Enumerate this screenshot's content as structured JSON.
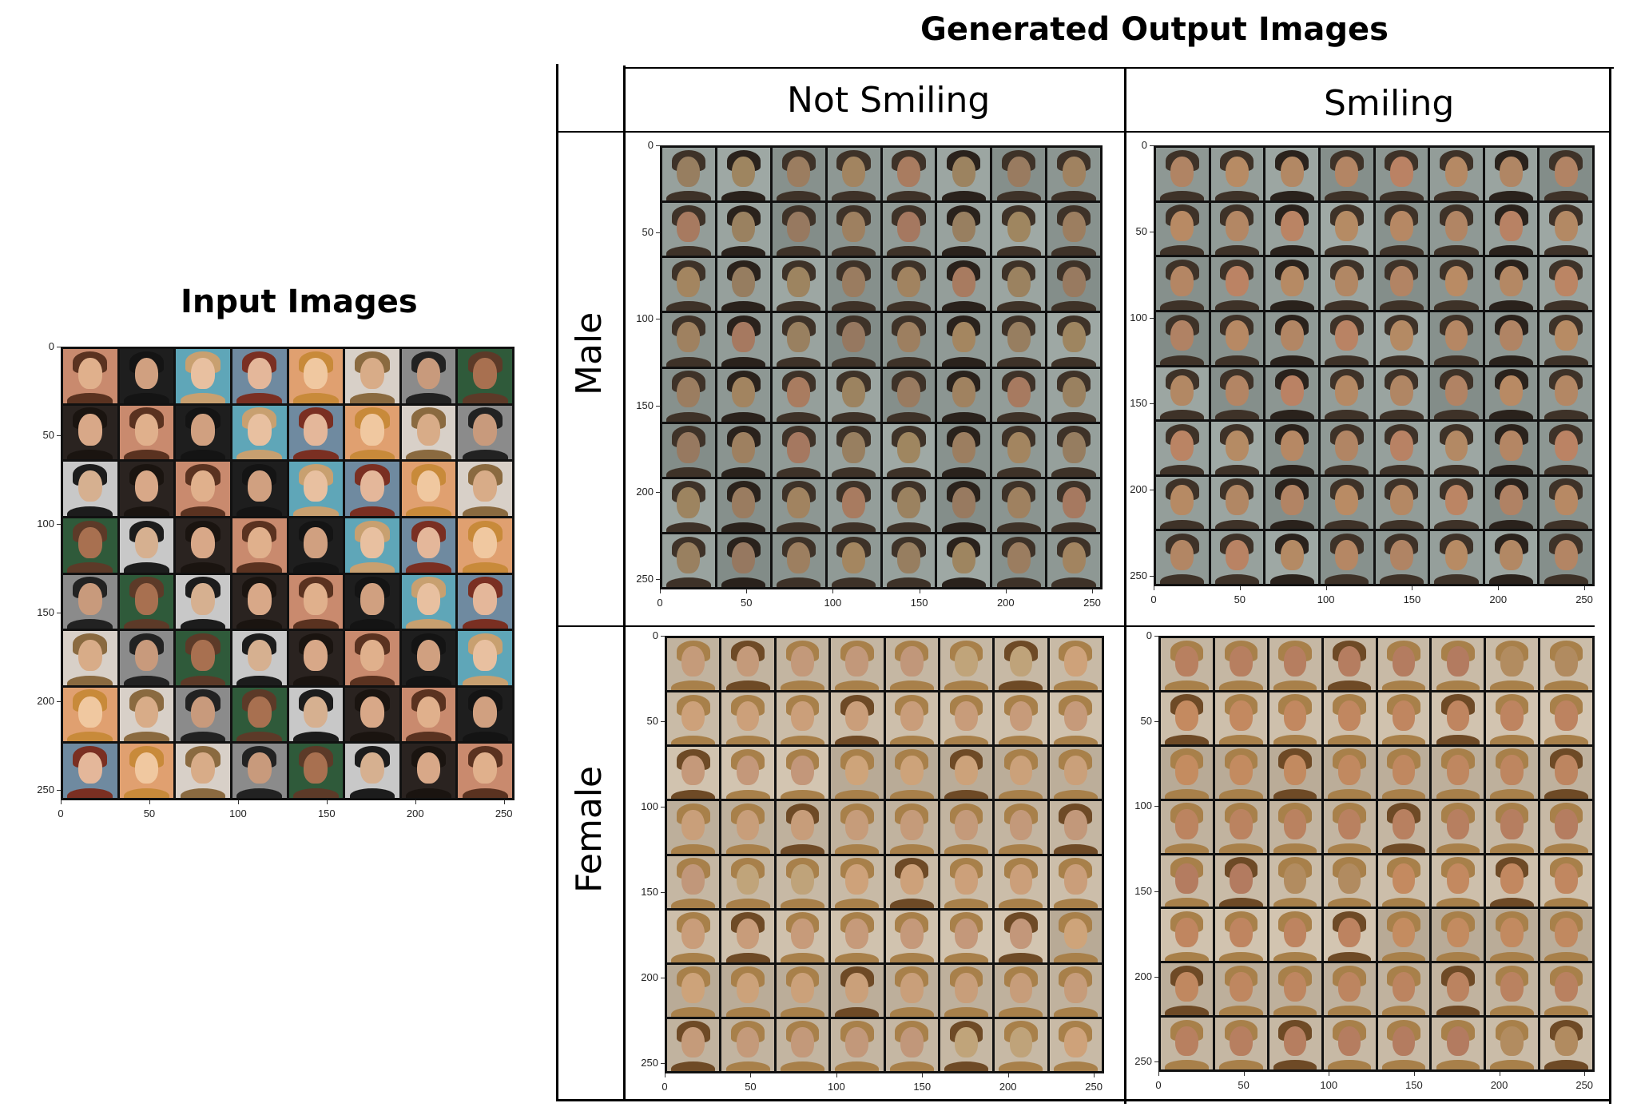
{
  "input_title": "Input Images",
  "output_title": "Generated Output Images",
  "col_headers": [
    "Not Smiling",
    "Smiling"
  ],
  "row_headers": [
    "Male",
    "Female"
  ],
  "axis_ticks": [
    "0",
    "50",
    "100",
    "150",
    "200",
    "250"
  ],
  "panels": [
    {
      "name": "input-images-grid",
      "style": "input"
    },
    {
      "name": "male-not-smiling-grid",
      "style": "male"
    },
    {
      "name": "male-smiling-grid",
      "style": "male"
    },
    {
      "name": "female-not-smiling-grid",
      "style": "female"
    },
    {
      "name": "female-smiling-grid",
      "style": "female"
    }
  ],
  "colors": {
    "male_bg": "#8e9a96",
    "female_bg": "#b9ab94",
    "male_hair": "#3b3128",
    "female_hair": "#a37a45",
    "skin": "#b98c6a"
  }
}
